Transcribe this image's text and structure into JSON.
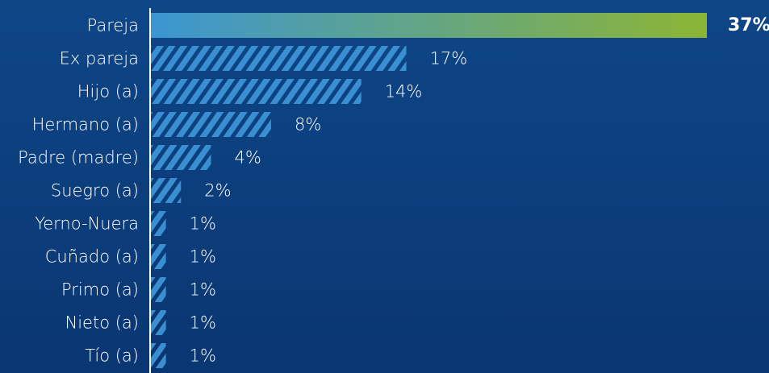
{
  "chart_data": {
    "type": "bar",
    "orientation": "horizontal",
    "categories": [
      "Pareja",
      "Ex pareja",
      "Hijo (a)",
      "Hermano (a)",
      "Padre (madre)",
      "Suegro (a)",
      "Yerno-Nuera",
      "Cuñado (a)",
      "Primo (a)",
      "Nieto (a)",
      "Tío (a)"
    ],
    "values": [
      37,
      17,
      14,
      8,
      4,
      2,
      1,
      1,
      1,
      1,
      1
    ],
    "value_labels": [
      "37%",
      "17%",
      "14%",
      "8%",
      "4%",
      "2%",
      "1%",
      "1%",
      "1%",
      "1%",
      "1%"
    ],
    "highlight_index": 0,
    "xlim": [
      0,
      37
    ],
    "grid": false,
    "colors": {
      "background": "#0b3a78",
      "bar": "#3a8fd0",
      "highlight_start": "#3b96d2",
      "highlight_end": "#8cb534",
      "text": "#ffffff",
      "axis": "#ffffff"
    }
  }
}
